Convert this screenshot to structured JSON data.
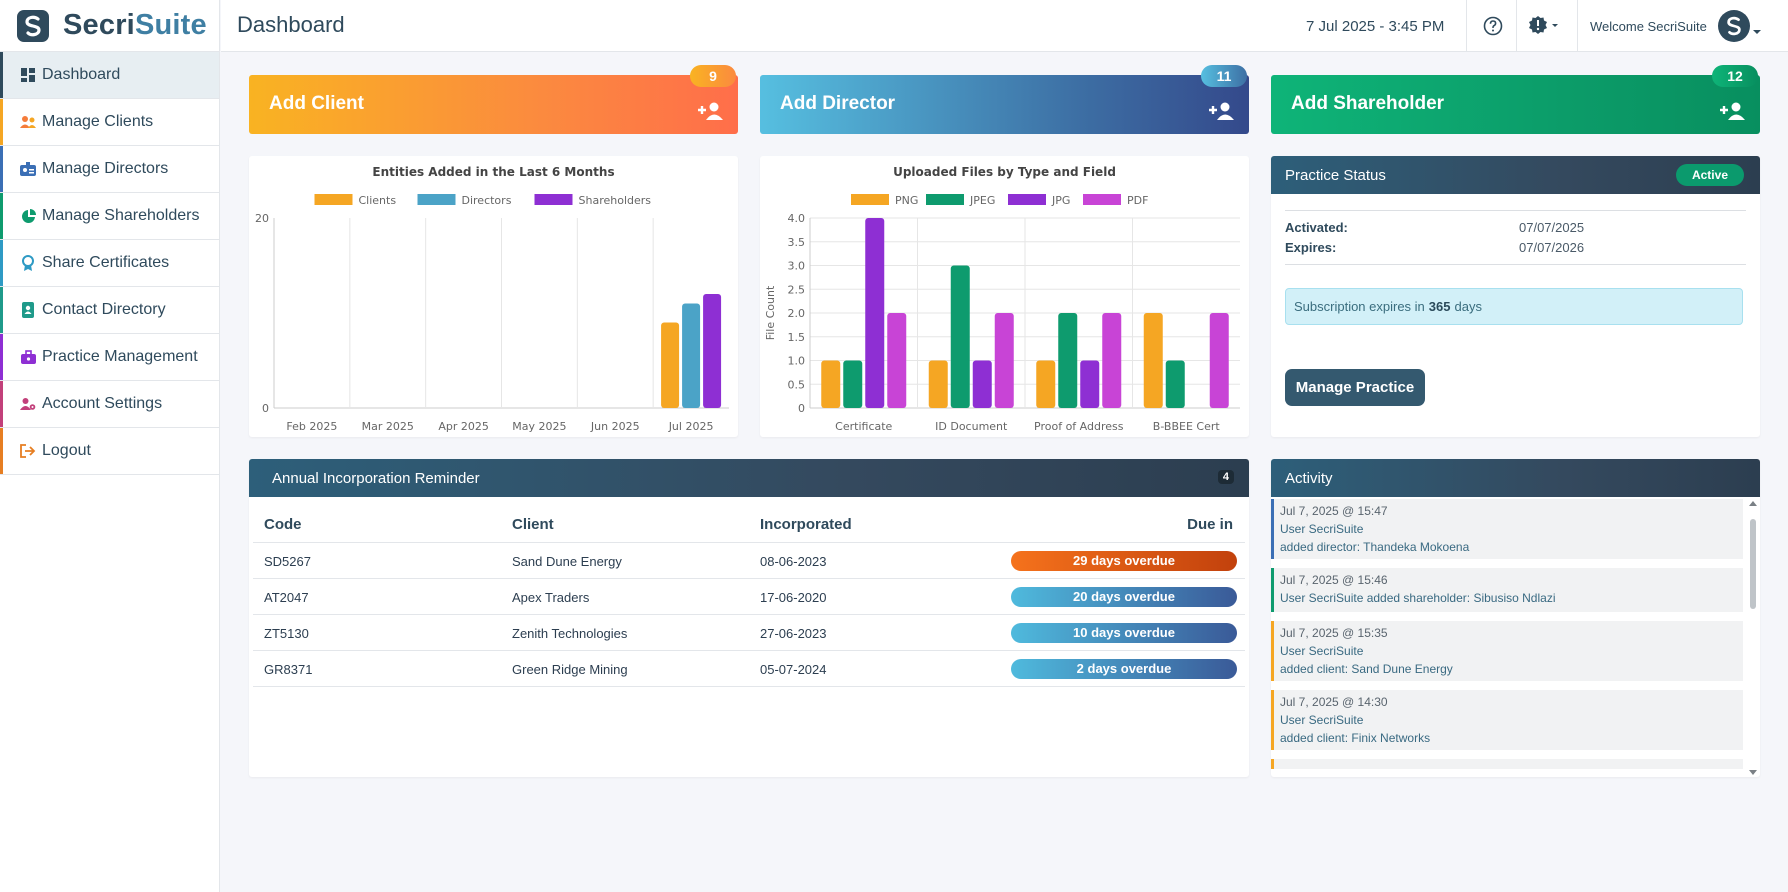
{
  "brand": {
    "name_part1": "Secri",
    "name_part2": "Suite"
  },
  "sidebar": {
    "items": [
      {
        "label": "Dashboard",
        "color": "#2f4a5c",
        "icon": "dashboard-icon"
      },
      {
        "label": "Manage Clients",
        "color": "#f5a623",
        "icon": "users-icon"
      },
      {
        "label": "Manage Directors",
        "color": "#3b6fb5",
        "icon": "id-card-icon"
      },
      {
        "label": "Manage Shareholders",
        "color": "#0e9b6e",
        "icon": "pie-chart-icon"
      },
      {
        "label": "Share Certificates",
        "color": "#2e9ac4",
        "icon": "certificate-icon"
      },
      {
        "label": "Contact Directory",
        "color": "#1f9a8a",
        "icon": "address-book-icon"
      },
      {
        "label": "Practice Management",
        "color": "#8e2fd3",
        "icon": "briefcase-icon"
      },
      {
        "label": "Account Settings",
        "color": "#c2407a",
        "icon": "user-gear-icon"
      },
      {
        "label": "Logout",
        "color": "#e67e22",
        "icon": "logout-icon"
      }
    ]
  },
  "header": {
    "title": "Dashboard",
    "datetime": "7 Jul 2025 - 3:45 PM",
    "welcome": "Welcome SecriSuite"
  },
  "action_cards": [
    {
      "title": "Add Client",
      "count": "9"
    },
    {
      "title": "Add Director",
      "count": "11"
    },
    {
      "title": "Add Shareholder",
      "count": "12"
    }
  ],
  "chart_data": [
    {
      "type": "bar",
      "title": "Entities Added in the Last 6 Months",
      "categories": [
        "Feb 2025",
        "Mar 2025",
        "Apr 2025",
        "May 2025",
        "Jun 2025",
        "Jul 2025"
      ],
      "series": [
        {
          "name": "Clients",
          "values": [
            0,
            0,
            0,
            0,
            0,
            9
          ],
          "color": "#f5a623"
        },
        {
          "name": "Directors",
          "values": [
            0,
            0,
            0,
            0,
            0,
            11
          ],
          "color": "#4ba3c7"
        },
        {
          "name": "Shareholders",
          "values": [
            0,
            0,
            0,
            0,
            0,
            12
          ],
          "color": "#8e2fd3"
        }
      ],
      "yticks": [
        "0",
        "20"
      ],
      "ylim": [
        0,
        20
      ],
      "grid": true,
      "legend": "top"
    },
    {
      "type": "bar",
      "title": "Uploaded Files by Type and Field",
      "categories": [
        "Certificate",
        "ID Document",
        "Proof of Address",
        "B-BBEE Cert"
      ],
      "series": [
        {
          "name": "PNG",
          "values": [
            1,
            1,
            1,
            2
          ],
          "color": "#f5a623"
        },
        {
          "name": "JPEG",
          "values": [
            1,
            3,
            2,
            1
          ],
          "color": "#0e9b6e"
        },
        {
          "name": "JPG",
          "values": [
            4,
            1,
            1,
            0
          ],
          "color": "#8e2fd3"
        },
        {
          "name": "PDF",
          "values": [
            2,
            2,
            2,
            2
          ],
          "color": "#c844d6"
        }
      ],
      "ylabel": "File Count",
      "yticks": [
        "0",
        "0.5",
        "1.0",
        "1.5",
        "2.0",
        "2.5",
        "3.0",
        "3.5",
        "4.0"
      ],
      "ylim": [
        0,
        4
      ],
      "grid": true,
      "legend": "top"
    }
  ],
  "practice": {
    "title": "Practice Status",
    "status": "Active",
    "activated_label": "Activated:",
    "activated_value": "07/07/2025",
    "expires_label": "Expires:",
    "expires_value": "07/07/2026",
    "sub_prefix": "Subscription expires in",
    "sub_days": "365",
    "sub_suffix": "days",
    "button": "Manage Practice"
  },
  "reminder": {
    "title": "Annual Incorporation Reminder",
    "count": "4",
    "headers": [
      "Code",
      "Client",
      "Incorporated",
      "Due in"
    ],
    "rows": [
      {
        "code": "SD5267",
        "client": "Sand Dune Energy",
        "incorporated": "08-06-2023",
        "due": "29 days overdue",
        "severity": "high"
      },
      {
        "code": "AT2047",
        "client": "Apex Traders",
        "incorporated": "17-06-2020",
        "due": "20 days overdue",
        "severity": "normal"
      },
      {
        "code": "ZT5130",
        "client": "Zenith Technologies",
        "incorporated": "27-06-2023",
        "due": "10 days overdue",
        "severity": "normal"
      },
      {
        "code": "GR8371",
        "client": "Green Ridge Mining",
        "incorporated": "05-07-2024",
        "due": "2 days overdue",
        "severity": "normal"
      }
    ]
  },
  "activity": {
    "title": "Activity",
    "items": [
      {
        "time": "Jul 7, 2025 @ 15:47",
        "line1": "User SecriSuite",
        "line2": "added director: Thandeka Mokoena",
        "color": "#3b6fb5"
      },
      {
        "time": "Jul 7, 2025 @ 15:46",
        "line1": "User SecriSuite added shareholder: Sibusiso Ndlazi",
        "line2": "",
        "color": "#0e9b6e"
      },
      {
        "time": "Jul 7, 2025 @ 15:35",
        "line1": "User SecriSuite",
        "line2": "added client: Sand Dune Energy",
        "color": "#f5a623"
      },
      {
        "time": "Jul 7, 2025 @ 14:30",
        "line1": "User SecriSuite",
        "line2": "added client: Finix Networks",
        "color": "#f5a623"
      }
    ]
  }
}
